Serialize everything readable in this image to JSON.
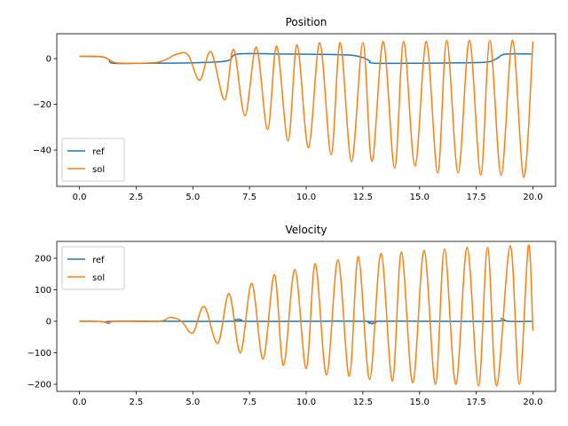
{
  "chart_data": [
    {
      "type": "line",
      "title": "Position",
      "xlim": [
        -1,
        21
      ],
      "ylim": [
        -55.9,
        10.9
      ],
      "xticks": [
        {
          "value": 0,
          "label": "0.0"
        },
        {
          "value": 2.5,
          "label": "2.5"
        },
        {
          "value": 5,
          "label": "5.0"
        },
        {
          "value": 7.5,
          "label": "7.5"
        },
        {
          "value": 10,
          "label": "10.0"
        },
        {
          "value": 12.5,
          "label": "12.5"
        },
        {
          "value": 15,
          "label": "15.0"
        },
        {
          "value": 17.5,
          "label": "17.5"
        },
        {
          "value": 20,
          "label": "20.0"
        }
      ],
      "yticks": [
        {
          "value": -40,
          "label": "−40"
        },
        {
          "value": -20,
          "label": "−20"
        },
        0
      ],
      "legend": "lower left",
      "series": [
        {
          "name": "ref",
          "color": "#1f77b4",
          "x": [
            0,
            1,
            1.3,
            1.5,
            3,
            5,
            6.5,
            7,
            9,
            11,
            12,
            12.5,
            12.8,
            13,
            15,
            17,
            18,
            18.4,
            18.8,
            20
          ],
          "values": [
            1,
            0.8,
            -0.5,
            -2,
            -2,
            -1.8,
            -1,
            2,
            2,
            1.8,
            1.5,
            0.5,
            -1,
            -2,
            -2,
            -1.8,
            -1.5,
            0,
            2,
            2
          ]
        },
        {
          "name": "sol",
          "color": "#ff7f0e",
          "x": [
            0,
            1,
            1.5,
            2,
            3.5,
            4.3,
            4.8,
            5.3,
            5.8,
            6.4,
            6.8,
            7.3,
            7.8,
            8.3,
            8.7,
            9.2,
            9.6,
            10.1,
            10.6,
            11.1,
            11.5,
            12.0,
            12.5,
            12.9,
            13.4,
            13.9,
            14.3,
            14.8,
            15.3,
            15.8,
            16.2,
            16.7,
            17.2,
            17.7,
            18.1,
            18.6,
            19.1,
            19.6,
            20
          ],
          "values": [
            1,
            0.8,
            -1.5,
            -2,
            -1.5,
            2,
            1.5,
            -9.5,
            3,
            -18,
            4,
            -25,
            5,
            -31,
            5.5,
            -36,
            6,
            -39,
            7,
            -42,
            7,
            -45,
            7,
            -45,
            7.5,
            -48,
            7.5,
            -47,
            7.5,
            -50,
            8,
            -50,
            8,
            -51,
            8,
            -51,
            8,
            -52,
            7.5
          ]
        }
      ]
    },
    {
      "type": "line",
      "title": "Velocity",
      "xlim": [
        -1,
        21
      ],
      "ylim": [
        -222.5,
        253.5
      ],
      "xticks": [
        {
          "value": 0,
          "label": "0.0"
        },
        {
          "value": 2.5,
          "label": "2.5"
        },
        {
          "value": 5,
          "label": "5.0"
        },
        {
          "value": 7.5,
          "label": "7.5"
        },
        {
          "value": 10,
          "label": "10.0"
        },
        {
          "value": 12.5,
          "label": "12.5"
        },
        {
          "value": 15,
          "label": "15.0"
        },
        {
          "value": 17.5,
          "label": "17.5"
        },
        {
          "value": 20,
          "label": "20.0"
        }
      ],
      "yticks": [
        {
          "value": -200,
          "label": "−200"
        },
        {
          "value": -100,
          "label": "−100"
        },
        0,
        100,
        200
      ],
      "legend": "upper left",
      "series": [
        {
          "name": "ref",
          "color": "#1f77b4",
          "x": [
            0,
            1,
            1.3,
            1.6,
            6.7,
            7.0,
            7.3,
            12.6,
            12.9,
            13.2,
            18.3,
            18.6,
            18.9,
            20
          ],
          "values": [
            0,
            -1,
            -7,
            0,
            0,
            7,
            0,
            0,
            -8,
            0,
            0,
            8,
            0,
            0
          ]
        },
        {
          "name": "sol",
          "color": "#ff7f0e",
          "x": [
            0,
            1,
            1.3,
            1.6,
            3.5,
            4.0,
            4.5,
            5.0,
            5.5,
            6.1,
            6.6,
            7.1,
            7.6,
            8.1,
            8.6,
            9.0,
            9.5,
            10.0,
            10.4,
            10.9,
            11.4,
            11.9,
            12.3,
            12.8,
            13.3,
            13.8,
            14.2,
            14.7,
            15.2,
            15.7,
            16.1,
            16.6,
            17.1,
            17.6,
            18.0,
            18.4,
            19.0,
            19.4,
            19.8,
            20
          ],
          "values": [
            0,
            -1,
            -7,
            0,
            0,
            12,
            0,
            -37,
            47,
            -70,
            88,
            -100,
            120,
            -120,
            148,
            -140,
            165,
            -150,
            182,
            -170,
            195,
            -175,
            205,
            -185,
            215,
            -190,
            220,
            -195,
            225,
            -200,
            230,
            -200,
            235,
            -205,
            235,
            -205,
            240,
            -200,
            240,
            -30
          ]
        }
      ]
    }
  ]
}
